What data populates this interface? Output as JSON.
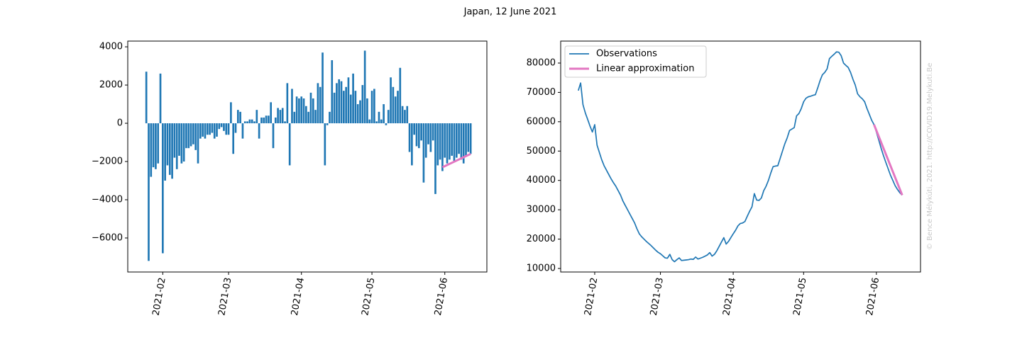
{
  "title": "Japan, 12 June 2021",
  "watermark": "© Bence Mélykúti, 2021. http://COVID19.Melykuti.Be",
  "chart_data": [
    {
      "type": "bar",
      "color": "#1f77b4",
      "x": [
        25,
        26,
        27,
        28,
        29,
        30,
        31,
        32,
        33,
        34,
        35,
        36,
        37,
        38,
        39,
        40,
        41,
        42,
        43,
        44,
        45,
        46,
        47,
        48,
        49,
        50,
        51,
        52,
        53,
        54,
        55,
        56,
        57,
        58,
        59,
        60,
        61,
        62,
        63,
        64,
        65,
        66,
        67,
        68,
        69,
        70,
        71,
        72,
        73,
        74,
        75,
        76,
        77,
        78,
        79,
        80,
        81,
        82,
        83,
        84,
        85,
        86,
        87,
        88,
        89,
        90,
        91,
        92,
        93,
        94,
        95,
        96,
        97,
        98,
        99,
        100,
        101,
        102,
        103,
        104,
        105,
        106,
        107,
        108,
        109,
        110,
        111,
        112,
        113,
        114,
        115,
        116,
        117,
        118,
        119,
        120,
        121,
        122,
        123,
        124,
        125,
        126,
        127,
        128,
        129,
        130,
        131,
        132,
        133,
        134,
        135,
        136,
        137,
        138,
        139,
        140,
        141,
        142,
        143,
        144,
        145,
        146,
        147,
        148,
        149,
        150,
        151,
        152,
        153,
        154,
        155,
        156,
        157,
        158,
        159,
        160,
        161,
        162,
        163
      ],
      "values": [
        2700,
        -7200,
        -2800,
        -2300,
        -2400,
        -2100,
        2600,
        -6800,
        -3000,
        -2200,
        -2700,
        -2900,
        -1800,
        -2400,
        -1700,
        -2100,
        -2000,
        -1300,
        -1300,
        -1200,
        -1100,
        -1400,
        -2100,
        -800,
        -700,
        -800,
        -600,
        -600,
        -500,
        -800,
        -700,
        -300,
        -200,
        -400,
        -600,
        -600,
        1100,
        -1600,
        -500,
        700,
        600,
        -800,
        100,
        100,
        200,
        200,
        100,
        700,
        -800,
        300,
        300,
        400,
        400,
        1100,
        -1300,
        300,
        800,
        700,
        800,
        100,
        2100,
        -2200,
        1800,
        600,
        1400,
        1300,
        1400,
        1300,
        900,
        600,
        1600,
        1300,
        700,
        2100,
        1900,
        3700,
        -2200,
        -100,
        600,
        3300,
        1600,
        2100,
        2300,
        2200,
        1700,
        1900,
        2400,
        1500,
        2600,
        1700,
        1000,
        1200,
        2000,
        3800,
        1300,
        200,
        1700,
        1800,
        100,
        600,
        200,
        1000,
        -100,
        700,
        2400,
        1900,
        1400,
        1700,
        2900,
        900,
        700,
        900,
        -1500,
        -2200,
        -600,
        -1200,
        -1300,
        -900,
        -3100,
        -1800,
        -1100,
        -1500,
        -900,
        -3700,
        -2200,
        -1900,
        -2500,
        -1800,
        -2100,
        -1900,
        -1700,
        -2000,
        -1800,
        -1600,
        -1900,
        -2100,
        -1700,
        -1500,
        -1600
      ],
      "lines": [
        {
          "color": "#e377c2",
          "x": [
            151,
            163
          ],
          "values": [
            -2300,
            -1600
          ]
        }
      ],
      "xlim": [
        17.1,
        169.9
      ],
      "xticks": [
        {
          "value": 32,
          "label": "2021-02"
        },
        {
          "value": 60,
          "label": "2021-03"
        },
        {
          "value": 91,
          "label": "2021-04"
        },
        {
          "value": 121,
          "label": "2021-05"
        },
        {
          "value": 152,
          "label": "2021-06"
        }
      ],
      "ylim": [
        -7780,
        4300
      ],
      "yticks": [
        {
          "value": -6000,
          "label": "−6000"
        },
        {
          "value": -4000,
          "label": "−4000"
        },
        {
          "value": -2000,
          "label": "−2000"
        },
        0,
        2000,
        4000
      ]
    },
    {
      "type": "line",
      "legend": "upper left",
      "series": [
        {
          "name": "Observations",
          "color": "#1f77b4",
          "x": [
            25,
            26,
            27,
            28,
            29,
            30,
            31,
            32,
            33,
            34,
            35,
            36,
            37,
            38,
            39,
            40,
            41,
            42,
            43,
            44,
            45,
            46,
            47,
            48,
            49,
            50,
            51,
            52,
            53,
            54,
            55,
            56,
            57,
            58,
            59,
            60,
            61,
            62,
            63,
            64,
            65,
            66,
            67,
            68,
            69,
            70,
            71,
            72,
            73,
            74,
            75,
            76,
            77,
            78,
            79,
            80,
            81,
            82,
            83,
            84,
            85,
            86,
            87,
            88,
            89,
            90,
            91,
            92,
            93,
            94,
            95,
            96,
            97,
            98,
            99,
            100,
            101,
            102,
            103,
            104,
            105,
            106,
            107,
            108,
            109,
            110,
            111,
            112,
            113,
            114,
            115,
            116,
            117,
            118,
            119,
            120,
            121,
            122,
            123,
            124,
            125,
            126,
            127,
            128,
            129,
            130,
            131,
            132,
            133,
            134,
            135,
            136,
            137,
            138,
            139,
            140,
            141,
            142,
            143,
            144,
            145,
            146,
            147,
            148,
            149,
            150,
            151,
            152,
            153,
            154,
            155,
            156,
            157,
            158,
            159,
            160,
            161,
            162,
            163
          ],
          "values": [
            70600,
            73200,
            65800,
            63000,
            60800,
            58500,
            56500,
            59000,
            52000,
            49500,
            47000,
            45000,
            43500,
            42000,
            40500,
            39200,
            38000,
            36500,
            35000,
            33000,
            31500,
            30000,
            28500,
            27000,
            25500,
            23500,
            21800,
            20800,
            20000,
            19200,
            18500,
            17800,
            17000,
            16200,
            15500,
            15000,
            14300,
            13600,
            13500,
            14800,
            13000,
            12300,
            13000,
            13600,
            12700,
            12800,
            12900,
            13000,
            13200,
            13100,
            13900,
            13200,
            13500,
            13800,
            14200,
            14600,
            15400,
            14200,
            14800,
            16000,
            17500,
            19000,
            20500,
            18300,
            19200,
            20500,
            21800,
            23000,
            24500,
            25300,
            25500,
            26000,
            27800,
            29500,
            31000,
            35500,
            33300,
            33200,
            34000,
            36500,
            38000,
            40000,
            42500,
            44700,
            44900,
            45000,
            47500,
            50000,
            52500,
            54500,
            57000,
            57500,
            58000,
            62000,
            62800,
            64500,
            66800,
            68000,
            68500,
            68700,
            69000,
            69200,
            71500,
            74000,
            76000,
            76800,
            78000,
            81500,
            82300,
            83000,
            83800,
            83700,
            82500,
            80000,
            79200,
            78500,
            76800,
            74500,
            72500,
            69500,
            68500,
            67800,
            66800,
            64500,
            62500,
            60500,
            59000,
            56500,
            53800,
            51000,
            48500,
            46200,
            44000,
            41800,
            40000,
            38200,
            36900,
            35800,
            35000
          ]
        },
        {
          "name": "Linear approximation",
          "color": "#e377c2",
          "x": [
            151,
            163
          ],
          "values": [
            59000,
            35000
          ]
        }
      ],
      "xlim": [
        17.5,
        170.8
      ],
      "xticks": [
        {
          "value": 32,
          "label": "2021-02"
        },
        {
          "value": 60,
          "label": "2021-03"
        },
        {
          "value": 91,
          "label": "2021-04"
        },
        {
          "value": 121,
          "label": "2021-05"
        },
        {
          "value": 152,
          "label": "2021-06"
        }
      ],
      "ylim": [
        8790,
        87480
      ],
      "yticks": [
        10000,
        20000,
        30000,
        40000,
        50000,
        60000,
        70000,
        80000
      ]
    }
  ]
}
